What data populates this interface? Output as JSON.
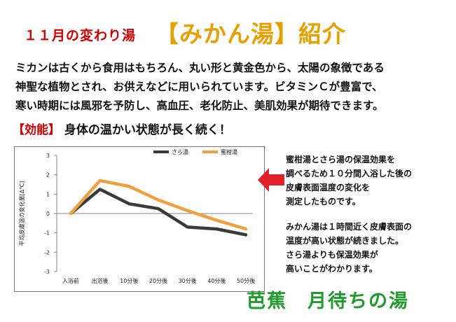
{
  "header": {
    "prefix": "１１月の変わり湯",
    "main": "【みかん湯】紹介"
  },
  "intro_lines": [
    "ミカンは古くから食用はもちろん、丸い形と黄金色から、太陽の象徴である",
    "神聖な植物とされ、お供えなどに用いられています。ビタミンＣが豊富で、",
    "寒い時期には風邪を予防し、高血圧、老化防止、美肌効果が期待できます。"
  ],
  "effect": {
    "tag": "【効能】",
    "text": "身体の温かい状態が長く続く！"
  },
  "chart_data": {
    "type": "line",
    "ylabel": "平均皮膚温の変化量[Δ℃]",
    "categories": [
      "入浴前",
      "出浴後",
      "10分後",
      "20分後",
      "30分後",
      "40分後",
      "50分後"
    ],
    "ylim": [
      -3,
      3
    ],
    "yticks": [
      3,
      2,
      1,
      0,
      -1,
      -2,
      -3
    ],
    "grid": false,
    "legend": "top-right",
    "series": [
      {
        "name": "さら湯",
        "color": "#3a3a3a",
        "values": [
          0,
          1.25,
          0.5,
          0.25,
          -0.7,
          -0.8,
          -1.1
        ]
      },
      {
        "name": "蜜柑湯",
        "color": "#f0a040",
        "values": [
          0,
          1.7,
          1.4,
          0.7,
          0.15,
          -0.35,
          -0.8
        ]
      }
    ]
  },
  "side_text": {
    "para1": [
      "蜜柑湯とさら湯の保温効果を",
      "調べるため１０分間入浴した後の",
      "皮膚表面温度の変化を",
      "測定したものです。"
    ],
    "para2": [
      "みかん湯は１時間近く皮膚表面の",
      "温度が高い状態が続きました。",
      "さら湯よりも保温効果が",
      "高いことがわかります。"
    ]
  },
  "arrow_color": "#e0202a",
  "footer": "芭蕉　月待ちの湯"
}
